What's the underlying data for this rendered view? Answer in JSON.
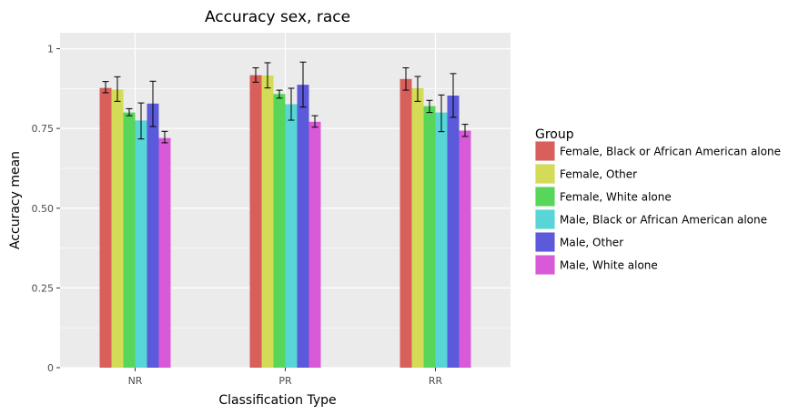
{
  "chart_data": {
    "type": "bar",
    "title": "Accuracy sex, race",
    "xlabel": "Classification Type",
    "ylabel": "Accuracy mean",
    "categories": [
      "NR",
      "PR",
      "RR"
    ],
    "ylim": [
      0,
      1.05
    ],
    "yticks": [
      0,
      0.25,
      0.5,
      0.75,
      1
    ],
    "ytick_labels": [
      "0",
      "0.25",
      "0.50",
      "0.75",
      "1"
    ],
    "grid": true,
    "legend": {
      "title": "Group",
      "position": "right"
    },
    "series": [
      {
        "name": "Female, Black or African American alone",
        "color": "#d95f5a",
        "values": [
          0.877,
          0.917,
          0.905
        ],
        "err_low": [
          0.862,
          0.895,
          0.87
        ],
        "err_high": [
          0.897,
          0.94,
          0.94
        ]
      },
      {
        "name": "Female, Other",
        "color": "#d4dc57",
        "values": [
          0.872,
          0.916,
          0.876
        ],
        "err_low": [
          0.835,
          0.877,
          0.835
        ],
        "err_high": [
          0.912,
          0.956,
          0.913
        ]
      },
      {
        "name": "Female, White alone",
        "color": "#58d659",
        "values": [
          0.8,
          0.858,
          0.82
        ],
        "err_low": [
          0.79,
          0.845,
          0.8
        ],
        "err_high": [
          0.812,
          0.87,
          0.838
        ]
      },
      {
        "name": "Male, Black or African American alone",
        "color": "#58d6d7",
        "values": [
          0.775,
          0.826,
          0.8
        ],
        "err_low": [
          0.717,
          0.776,
          0.74
        ],
        "err_high": [
          0.83,
          0.876,
          0.855
        ]
      },
      {
        "name": "Male, Other",
        "color": "#5a5adb",
        "values": [
          0.828,
          0.887,
          0.853
        ],
        "err_low": [
          0.756,
          0.817,
          0.785
        ],
        "err_high": [
          0.898,
          0.958,
          0.922
        ]
      },
      {
        "name": "Male, White alone",
        "color": "#d95ad8",
        "values": [
          0.72,
          0.771,
          0.743
        ],
        "err_low": [
          0.705,
          0.754,
          0.725
        ],
        "err_high": [
          0.741,
          0.79,
          0.763
        ]
      }
    ]
  }
}
